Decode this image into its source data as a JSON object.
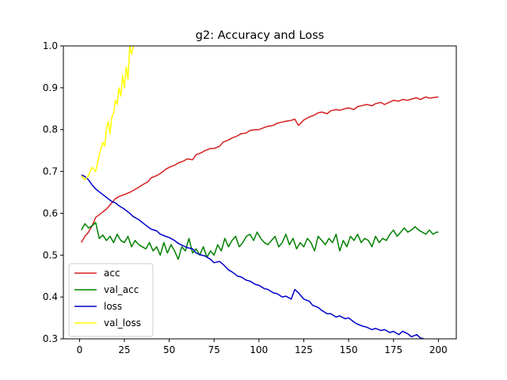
{
  "chart_data": {
    "type": "line",
    "title": "g2: Accuracy and Loss",
    "xlabel": "",
    "ylabel": "",
    "xlim": [
      -9,
      210
    ],
    "ylim": [
      0.3,
      1.0
    ],
    "xticks": [
      0,
      25,
      50,
      75,
      100,
      125,
      150,
      175,
      200
    ],
    "yticks": [
      0.3,
      0.4,
      0.5,
      0.6,
      0.7,
      0.8,
      0.9,
      1.0
    ],
    "xtick_labels": [
      "0",
      "25",
      "50",
      "75",
      "100",
      "125",
      "150",
      "175",
      "200"
    ],
    "ytick_labels": [
      "0.3",
      "0.4",
      "0.5",
      "0.6",
      "0.7",
      "0.8",
      "0.9",
      "1.0"
    ],
    "grid": false,
    "legend_position": "lower-left",
    "series": [
      {
        "name": "acc",
        "color": "#d62020",
        "x": [
          1,
          3,
          5,
          7,
          9,
          12,
          15,
          18,
          20,
          22,
          25,
          28,
          30,
          33,
          35,
          38,
          40,
          43,
          45,
          48,
          50,
          53,
          55,
          58,
          60,
          63,
          65,
          68,
          70,
          73,
          75,
          78,
          80,
          83,
          85,
          88,
          90,
          93,
          95,
          98,
          100,
          103,
          105,
          108,
          110,
          113,
          115,
          118,
          120,
          122,
          125,
          128,
          130,
          133,
          135,
          138,
          140,
          143,
          145,
          148,
          150,
          153,
          155,
          158,
          160,
          163,
          165,
          168,
          170,
          173,
          175,
          178,
          180,
          183,
          185,
          188,
          190,
          193,
          195,
          198,
          200
        ],
        "y": [
          0.53,
          0.545,
          0.555,
          0.57,
          0.59,
          0.6,
          0.61,
          0.625,
          0.635,
          0.64,
          0.645,
          0.65,
          0.655,
          0.662,
          0.668,
          0.675,
          0.685,
          0.69,
          0.695,
          0.705,
          0.71,
          0.715,
          0.72,
          0.725,
          0.73,
          0.728,
          0.74,
          0.745,
          0.75,
          0.755,
          0.755,
          0.76,
          0.77,
          0.775,
          0.78,
          0.785,
          0.79,
          0.792,
          0.798,
          0.8,
          0.8,
          0.805,
          0.808,
          0.81,
          0.815,
          0.818,
          0.82,
          0.822,
          0.825,
          0.81,
          0.823,
          0.83,
          0.833,
          0.84,
          0.842,
          0.838,
          0.845,
          0.848,
          0.846,
          0.85,
          0.852,
          0.848,
          0.855,
          0.858,
          0.86,
          0.857,
          0.862,
          0.865,
          0.86,
          0.866,
          0.87,
          0.868,
          0.872,
          0.87,
          0.873,
          0.876,
          0.872,
          0.878,
          0.875,
          0.877,
          0.878
        ]
      },
      {
        "name": "val_acc",
        "color": "#008000",
        "x": [
          1,
          3,
          5,
          7,
          9,
          11,
          13,
          15,
          17,
          19,
          21,
          23,
          25,
          27,
          29,
          31,
          33,
          35,
          37,
          39,
          41,
          43,
          45,
          47,
          49,
          51,
          53,
          55,
          57,
          59,
          61,
          63,
          65,
          67,
          69,
          71,
          73,
          75,
          77,
          79,
          81,
          83,
          85,
          87,
          89,
          91,
          93,
          95,
          97,
          99,
          101,
          103,
          105,
          107,
          109,
          111,
          113,
          115,
          117,
          119,
          121,
          123,
          125,
          127,
          129,
          131,
          133,
          135,
          137,
          139,
          141,
          143,
          145,
          147,
          149,
          151,
          153,
          155,
          157,
          159,
          161,
          163,
          165,
          167,
          169,
          171,
          173,
          175,
          177,
          179,
          181,
          183,
          185,
          187,
          189,
          191,
          193,
          195,
          197,
          199,
          200
        ],
        "y": [
          0.56,
          0.575,
          0.565,
          0.57,
          0.578,
          0.54,
          0.548,
          0.535,
          0.545,
          0.53,
          0.55,
          0.535,
          0.53,
          0.545,
          0.52,
          0.535,
          0.525,
          0.52,
          0.515,
          0.53,
          0.51,
          0.52,
          0.5,
          0.53,
          0.505,
          0.525,
          0.51,
          0.49,
          0.52,
          0.51,
          0.54,
          0.505,
          0.515,
          0.5,
          0.52,
          0.495,
          0.51,
          0.5,
          0.525,
          0.51,
          0.54,
          0.52,
          0.535,
          0.545,
          0.52,
          0.53,
          0.545,
          0.55,
          0.535,
          0.555,
          0.54,
          0.53,
          0.525,
          0.535,
          0.545,
          0.52,
          0.53,
          0.55,
          0.525,
          0.54,
          0.515,
          0.53,
          0.52,
          0.54,
          0.53,
          0.51,
          0.545,
          0.535,
          0.525,
          0.54,
          0.53,
          0.55,
          0.51,
          0.535,
          0.52,
          0.545,
          0.535,
          0.55,
          0.53,
          0.54,
          0.535,
          0.52,
          0.545,
          0.53,
          0.54,
          0.535,
          0.55,
          0.56,
          0.545,
          0.555,
          0.565,
          0.555,
          0.56,
          0.568,
          0.56,
          0.555,
          0.55,
          0.56,
          0.55,
          0.555,
          0.555
        ]
      },
      {
        "name": "loss",
        "color": "#0000cc",
        "x": [
          1,
          3,
          5,
          7,
          9,
          12,
          15,
          18,
          20,
          22,
          25,
          28,
          30,
          33,
          35,
          38,
          40,
          43,
          45,
          48,
          50,
          53,
          55,
          58,
          60,
          63,
          65,
          68,
          70,
          73,
          75,
          78,
          80,
          83,
          85,
          88,
          90,
          93,
          95,
          98,
          100,
          103,
          105,
          108,
          110,
          113,
          115,
          118,
          120,
          122,
          125,
          128,
          130,
          133,
          135,
          138,
          140,
          143,
          145,
          148,
          150,
          153,
          155,
          158,
          160,
          163,
          165,
          168,
          170,
          173,
          175,
          178,
          180,
          183,
          185,
          188,
          190,
          192
        ],
        "y": [
          0.692,
          0.688,
          0.68,
          0.668,
          0.658,
          0.648,
          0.638,
          0.628,
          0.625,
          0.618,
          0.61,
          0.6,
          0.592,
          0.585,
          0.578,
          0.568,
          0.562,
          0.558,
          0.55,
          0.545,
          0.542,
          0.535,
          0.528,
          0.522,
          0.518,
          0.515,
          0.505,
          0.5,
          0.498,
          0.49,
          0.482,
          0.485,
          0.478,
          0.465,
          0.46,
          0.45,
          0.448,
          0.44,
          0.438,
          0.43,
          0.428,
          0.42,
          0.418,
          0.41,
          0.408,
          0.4,
          0.402,
          0.395,
          0.418,
          0.41,
          0.395,
          0.39,
          0.38,
          0.375,
          0.368,
          0.36,
          0.36,
          0.352,
          0.355,
          0.348,
          0.35,
          0.34,
          0.335,
          0.33,
          0.328,
          0.322,
          0.325,
          0.32,
          0.322,
          0.315,
          0.318,
          0.31,
          0.318,
          0.312,
          0.305,
          0.31,
          0.302,
          0.3
        ]
      },
      {
        "name": "val_loss",
        "color": "#ffff00",
        "x": [
          1,
          3,
          5,
          7,
          9,
          11,
          13,
          14,
          15,
          16,
          17,
          18,
          19,
          20,
          21,
          22,
          23,
          24,
          25,
          26,
          27,
          28,
          29,
          30
        ],
        "y": [
          0.69,
          0.68,
          0.69,
          0.71,
          0.7,
          0.74,
          0.77,
          0.76,
          0.8,
          0.82,
          0.79,
          0.83,
          0.84,
          0.87,
          0.86,
          0.9,
          0.88,
          0.93,
          0.9,
          0.95,
          0.92,
          1.0,
          0.98,
          1.0
        ]
      }
    ]
  }
}
